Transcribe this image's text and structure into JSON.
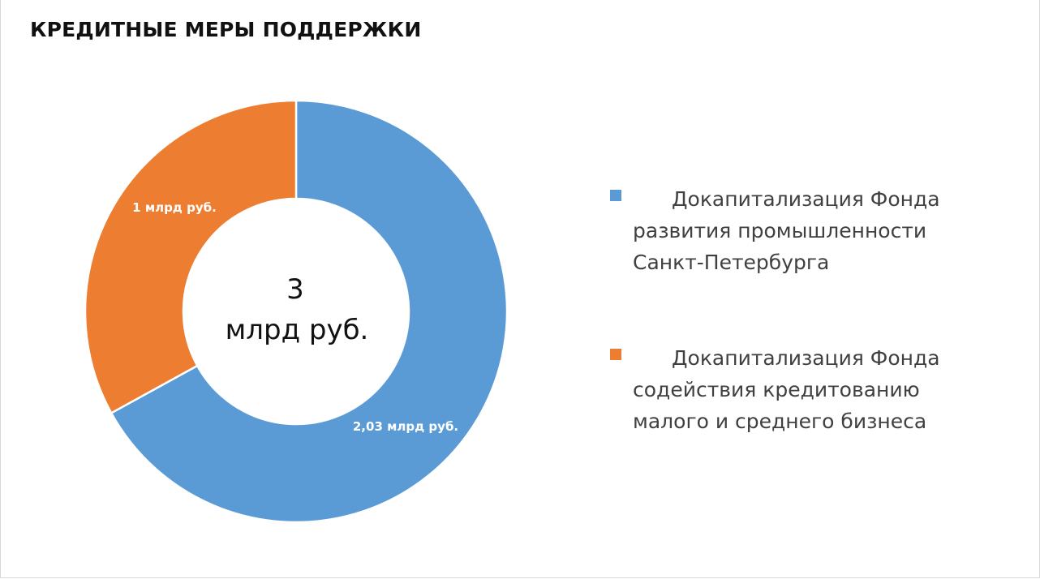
{
  "title": "КРЕДИТНЫЕ МЕРЫ ПОДДЕРЖКИ",
  "chart_data": {
    "type": "pie",
    "variant": "donut",
    "center_text": [
      "3",
      "млрд руб."
    ],
    "series": [
      {
        "name": "Докапитализация Фонда развития промышленности Санкт-Петербурга",
        "value": 2.03,
        "label": "2,03 млрд руб.",
        "color": "#5B9BD5"
      },
      {
        "name": "Докапитализация Фонда содействия кредитованию малого и среднего бизнеса",
        "value": 1,
        "label": "1 млрд руб.",
        "color": "#ED7D31"
      }
    ],
    "legend_position": "right"
  }
}
